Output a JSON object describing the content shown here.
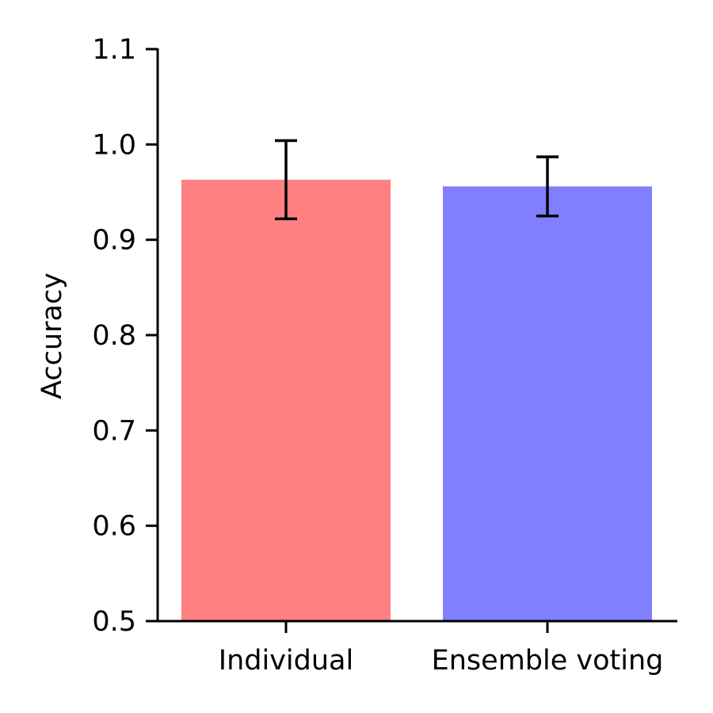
{
  "chart_data": {
    "type": "bar",
    "title": "",
    "xlabel": "",
    "ylabel": "Accuracy",
    "ylim": [
      0.5,
      1.1
    ],
    "yticks": [
      0.5,
      0.6,
      0.7,
      0.8,
      0.9,
      1.0,
      1.1
    ],
    "ytick_labels": [
      "0.5",
      "0.6",
      "0.7",
      "0.8",
      "0.9",
      "1.0",
      "1.1"
    ],
    "categories": [
      "Individual",
      "Ensemble voting"
    ],
    "values": [
      0.963,
      0.956
    ],
    "errors": [
      0.041,
      0.031
    ],
    "colors": [
      "#ff8080",
      "#8080ff"
    ],
    "grid": false,
    "legend": "none"
  }
}
